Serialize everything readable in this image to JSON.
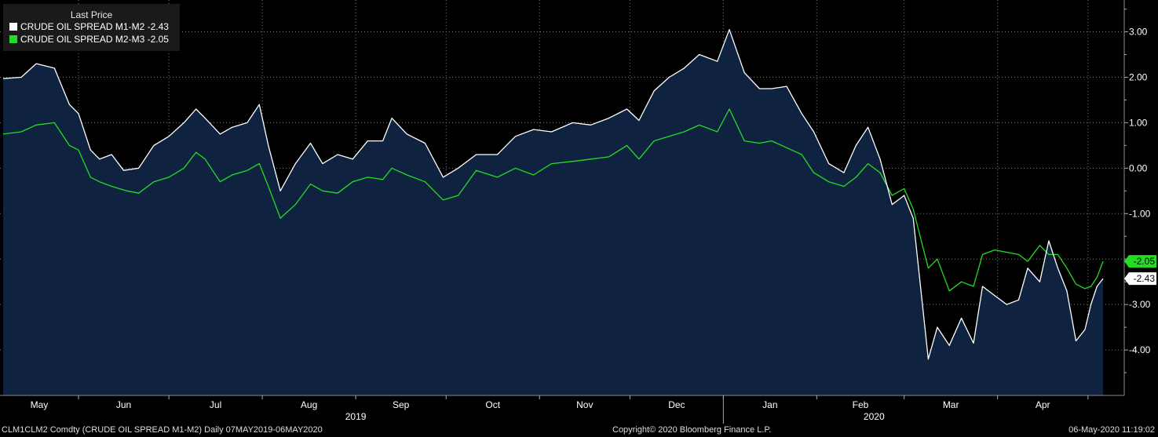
{
  "legend": {
    "title": "Last Price",
    "series": [
      {
        "label": "CRUDE OIL SPREAD M1-M2",
        "value": "-2.43",
        "color": "#ffffff"
      },
      {
        "label": "CRUDE OIL SPREAD M2-M3",
        "value": "-2.05",
        "color": "#22dd22"
      }
    ]
  },
  "footer": {
    "left": "CLM1CLM2 Comdty (CRUDE OIL SPREAD  M1-M2)  Daily 07MAY2019-06MAY2020",
    "center": "Copyright© 2020 Bloomberg Finance L.P.",
    "right": "06-May-2020 11:19:02"
  },
  "chart_data": {
    "type": "line",
    "ylim": [
      -5,
      3.7
    ],
    "y_ticks": [
      3,
      2,
      1,
      0,
      -1,
      -2,
      -3,
      -4
    ],
    "y_tick_labels": [
      "3.00",
      "2.00",
      "1.00",
      "0.00",
      "-1.00",
      "-2.00",
      "-3.00",
      "-4.00"
    ],
    "grid": true,
    "x_labels": [
      {
        "label": "May",
        "date": "2019-05-01"
      },
      {
        "label": "Jun",
        "date": "2019-06-01"
      },
      {
        "label": "Jul",
        "date": "2019-07-01"
      },
      {
        "label": "Aug",
        "date": "2019-08-01"
      },
      {
        "label": "Sep",
        "date": "2019-09-01"
      },
      {
        "label": "Oct",
        "date": "2019-10-01"
      },
      {
        "label": "Nov",
        "date": "2019-11-01"
      },
      {
        "label": "Dec",
        "date": "2019-12-01"
      },
      {
        "label": "Jan",
        "date": "2020-01-01"
      },
      {
        "label": "Feb",
        "date": "2020-02-01"
      },
      {
        "label": "Mar",
        "date": "2020-03-01"
      },
      {
        "label": "Apr",
        "date": "2020-04-01"
      }
    ],
    "year_labels": [
      {
        "label": "2019",
        "date": "2019-09-01"
      },
      {
        "label": "2020",
        "date": "2020-02-20"
      }
    ],
    "series": [
      {
        "name": "CRUDE OIL SPREAD M1-M2",
        "color": "#ffffff",
        "last": "-2.43",
        "points": [
          [
            "2019-05-07",
            1.97
          ],
          [
            "2019-05-13",
            2.0
          ],
          [
            "2019-05-18",
            2.3
          ],
          [
            "2019-05-24",
            2.2
          ],
          [
            "2019-05-29",
            1.4
          ],
          [
            "2019-06-01",
            1.2
          ],
          [
            "2019-06-05",
            0.4
          ],
          [
            "2019-06-08",
            0.2
          ],
          [
            "2019-06-12",
            0.3
          ],
          [
            "2019-06-16",
            -0.05
          ],
          [
            "2019-06-21",
            0.0
          ],
          [
            "2019-06-26",
            0.5
          ],
          [
            "2019-07-01",
            0.7
          ],
          [
            "2019-07-06",
            1.0
          ],
          [
            "2019-07-10",
            1.3
          ],
          [
            "2019-07-13",
            1.1
          ],
          [
            "2019-07-18",
            0.75
          ],
          [
            "2019-07-22",
            0.9
          ],
          [
            "2019-07-27",
            1.0
          ],
          [
            "2019-07-31",
            1.4
          ],
          [
            "2019-08-03",
            0.5
          ],
          [
            "2019-08-07",
            -0.5
          ],
          [
            "2019-08-12",
            0.1
          ],
          [
            "2019-08-17",
            0.55
          ],
          [
            "2019-08-21",
            0.1
          ],
          [
            "2019-08-26",
            0.3
          ],
          [
            "2019-08-31",
            0.2
          ],
          [
            "2019-09-05",
            0.6
          ],
          [
            "2019-09-10",
            0.6
          ],
          [
            "2019-09-13",
            1.1
          ],
          [
            "2019-09-18",
            0.75
          ],
          [
            "2019-09-24",
            0.55
          ],
          [
            "2019-09-30",
            -0.2
          ],
          [
            "2019-10-05",
            0.0
          ],
          [
            "2019-10-11",
            0.3
          ],
          [
            "2019-10-18",
            0.3
          ],
          [
            "2019-10-24",
            0.7
          ],
          [
            "2019-10-30",
            0.85
          ],
          [
            "2019-11-05",
            0.8
          ],
          [
            "2019-11-12",
            1.0
          ],
          [
            "2019-11-18",
            0.95
          ],
          [
            "2019-11-24",
            1.1
          ],
          [
            "2019-11-30",
            1.3
          ],
          [
            "2019-12-04",
            1.05
          ],
          [
            "2019-12-09",
            1.7
          ],
          [
            "2019-12-14",
            2.0
          ],
          [
            "2019-12-19",
            2.2
          ],
          [
            "2019-12-24",
            2.5
          ],
          [
            "2019-12-30",
            2.35
          ],
          [
            "2020-01-03",
            3.05
          ],
          [
            "2020-01-08",
            2.1
          ],
          [
            "2020-01-13",
            1.75
          ],
          [
            "2020-01-17",
            1.75
          ],
          [
            "2020-01-22",
            1.8
          ],
          [
            "2020-01-27",
            1.2
          ],
          [
            "2020-01-31",
            0.8
          ],
          [
            "2020-02-05",
            0.1
          ],
          [
            "2020-02-10",
            -0.1
          ],
          [
            "2020-02-14",
            0.5
          ],
          [
            "2020-02-18",
            0.9
          ],
          [
            "2020-02-22",
            0.2
          ],
          [
            "2020-02-26",
            -0.8
          ],
          [
            "2020-03-01",
            -0.6
          ],
          [
            "2020-03-04",
            -1.1
          ],
          [
            "2020-03-09",
            -4.2
          ],
          [
            "2020-03-12",
            -3.5
          ],
          [
            "2020-03-16",
            -3.9
          ],
          [
            "2020-03-20",
            -3.3
          ],
          [
            "2020-03-24",
            -3.85
          ],
          [
            "2020-03-27",
            -2.6
          ],
          [
            "2020-03-31",
            -2.8
          ],
          [
            "2020-04-04",
            -3.0
          ],
          [
            "2020-04-08",
            -2.9
          ],
          [
            "2020-04-11",
            -2.2
          ],
          [
            "2020-04-15",
            -2.5
          ],
          [
            "2020-04-18",
            -1.6
          ],
          [
            "2020-04-21",
            -2.2
          ],
          [
            "2020-04-24",
            -2.7
          ],
          [
            "2020-04-27",
            -3.8
          ],
          [
            "2020-04-30",
            -3.55
          ],
          [
            "2020-05-02",
            -3.0
          ],
          [
            "2020-05-04",
            -2.6
          ],
          [
            "2020-05-06",
            -2.43
          ]
        ]
      },
      {
        "name": "CRUDE OIL SPREAD M2-M3",
        "color": "#22dd22",
        "last": "-2.05",
        "points": [
          [
            "2019-05-07",
            0.75
          ],
          [
            "2019-05-13",
            0.8
          ],
          [
            "2019-05-18",
            0.95
          ],
          [
            "2019-05-24",
            1.0
          ],
          [
            "2019-05-29",
            0.5
          ],
          [
            "2019-06-01",
            0.4
          ],
          [
            "2019-06-05",
            -0.2
          ],
          [
            "2019-06-08",
            -0.3
          ],
          [
            "2019-06-12",
            -0.4
          ],
          [
            "2019-06-17",
            -0.5
          ],
          [
            "2019-06-21",
            -0.55
          ],
          [
            "2019-06-26",
            -0.3
          ],
          [
            "2019-07-01",
            -0.2
          ],
          [
            "2019-07-06",
            0.0
          ],
          [
            "2019-07-10",
            0.35
          ],
          [
            "2019-07-13",
            0.2
          ],
          [
            "2019-07-18",
            -0.3
          ],
          [
            "2019-07-22",
            -0.15
          ],
          [
            "2019-07-27",
            -0.05
          ],
          [
            "2019-07-31",
            0.1
          ],
          [
            "2019-08-03",
            -0.4
          ],
          [
            "2019-08-07",
            -1.1
          ],
          [
            "2019-08-12",
            -0.8
          ],
          [
            "2019-08-17",
            -0.35
          ],
          [
            "2019-08-21",
            -0.5
          ],
          [
            "2019-08-26",
            -0.55
          ],
          [
            "2019-08-31",
            -0.3
          ],
          [
            "2019-09-05",
            -0.2
          ],
          [
            "2019-09-10",
            -0.25
          ],
          [
            "2019-09-13",
            0.0
          ],
          [
            "2019-09-18",
            -0.15
          ],
          [
            "2019-09-24",
            -0.3
          ],
          [
            "2019-09-30",
            -0.7
          ],
          [
            "2019-10-05",
            -0.6
          ],
          [
            "2019-10-11",
            -0.05
          ],
          [
            "2019-10-18",
            -0.2
          ],
          [
            "2019-10-24",
            0.0
          ],
          [
            "2019-10-30",
            -0.15
          ],
          [
            "2019-11-05",
            0.1
          ],
          [
            "2019-11-12",
            0.15
          ],
          [
            "2019-11-18",
            0.2
          ],
          [
            "2019-11-24",
            0.25
          ],
          [
            "2019-11-30",
            0.5
          ],
          [
            "2019-12-04",
            0.2
          ],
          [
            "2019-12-09",
            0.6
          ],
          [
            "2019-12-14",
            0.7
          ],
          [
            "2019-12-19",
            0.8
          ],
          [
            "2019-12-24",
            0.95
          ],
          [
            "2019-12-30",
            0.8
          ],
          [
            "2020-01-03",
            1.3
          ],
          [
            "2020-01-08",
            0.6
          ],
          [
            "2020-01-13",
            0.55
          ],
          [
            "2020-01-17",
            0.6
          ],
          [
            "2020-01-22",
            0.45
          ],
          [
            "2020-01-27",
            0.3
          ],
          [
            "2020-01-31",
            -0.1
          ],
          [
            "2020-02-05",
            -0.3
          ],
          [
            "2020-02-10",
            -0.4
          ],
          [
            "2020-02-14",
            -0.2
          ],
          [
            "2020-02-18",
            0.1
          ],
          [
            "2020-02-22",
            -0.1
          ],
          [
            "2020-02-26",
            -0.6
          ],
          [
            "2020-03-01",
            -0.45
          ],
          [
            "2020-03-04",
            -0.9
          ],
          [
            "2020-03-09",
            -2.2
          ],
          [
            "2020-03-12",
            -2.0
          ],
          [
            "2020-03-16",
            -2.7
          ],
          [
            "2020-03-20",
            -2.5
          ],
          [
            "2020-03-24",
            -2.6
          ],
          [
            "2020-03-27",
            -1.9
          ],
          [
            "2020-03-31",
            -1.8
          ],
          [
            "2020-04-04",
            -1.85
          ],
          [
            "2020-04-08",
            -1.9
          ],
          [
            "2020-04-11",
            -2.05
          ],
          [
            "2020-04-15",
            -1.7
          ],
          [
            "2020-04-18",
            -1.9
          ],
          [
            "2020-04-21",
            -1.9
          ],
          [
            "2020-04-24",
            -2.2
          ],
          [
            "2020-04-27",
            -2.55
          ],
          [
            "2020-04-30",
            -2.65
          ],
          [
            "2020-05-02",
            -2.6
          ],
          [
            "2020-05-04",
            -2.4
          ],
          [
            "2020-05-06",
            -2.05
          ]
        ]
      }
    ]
  }
}
